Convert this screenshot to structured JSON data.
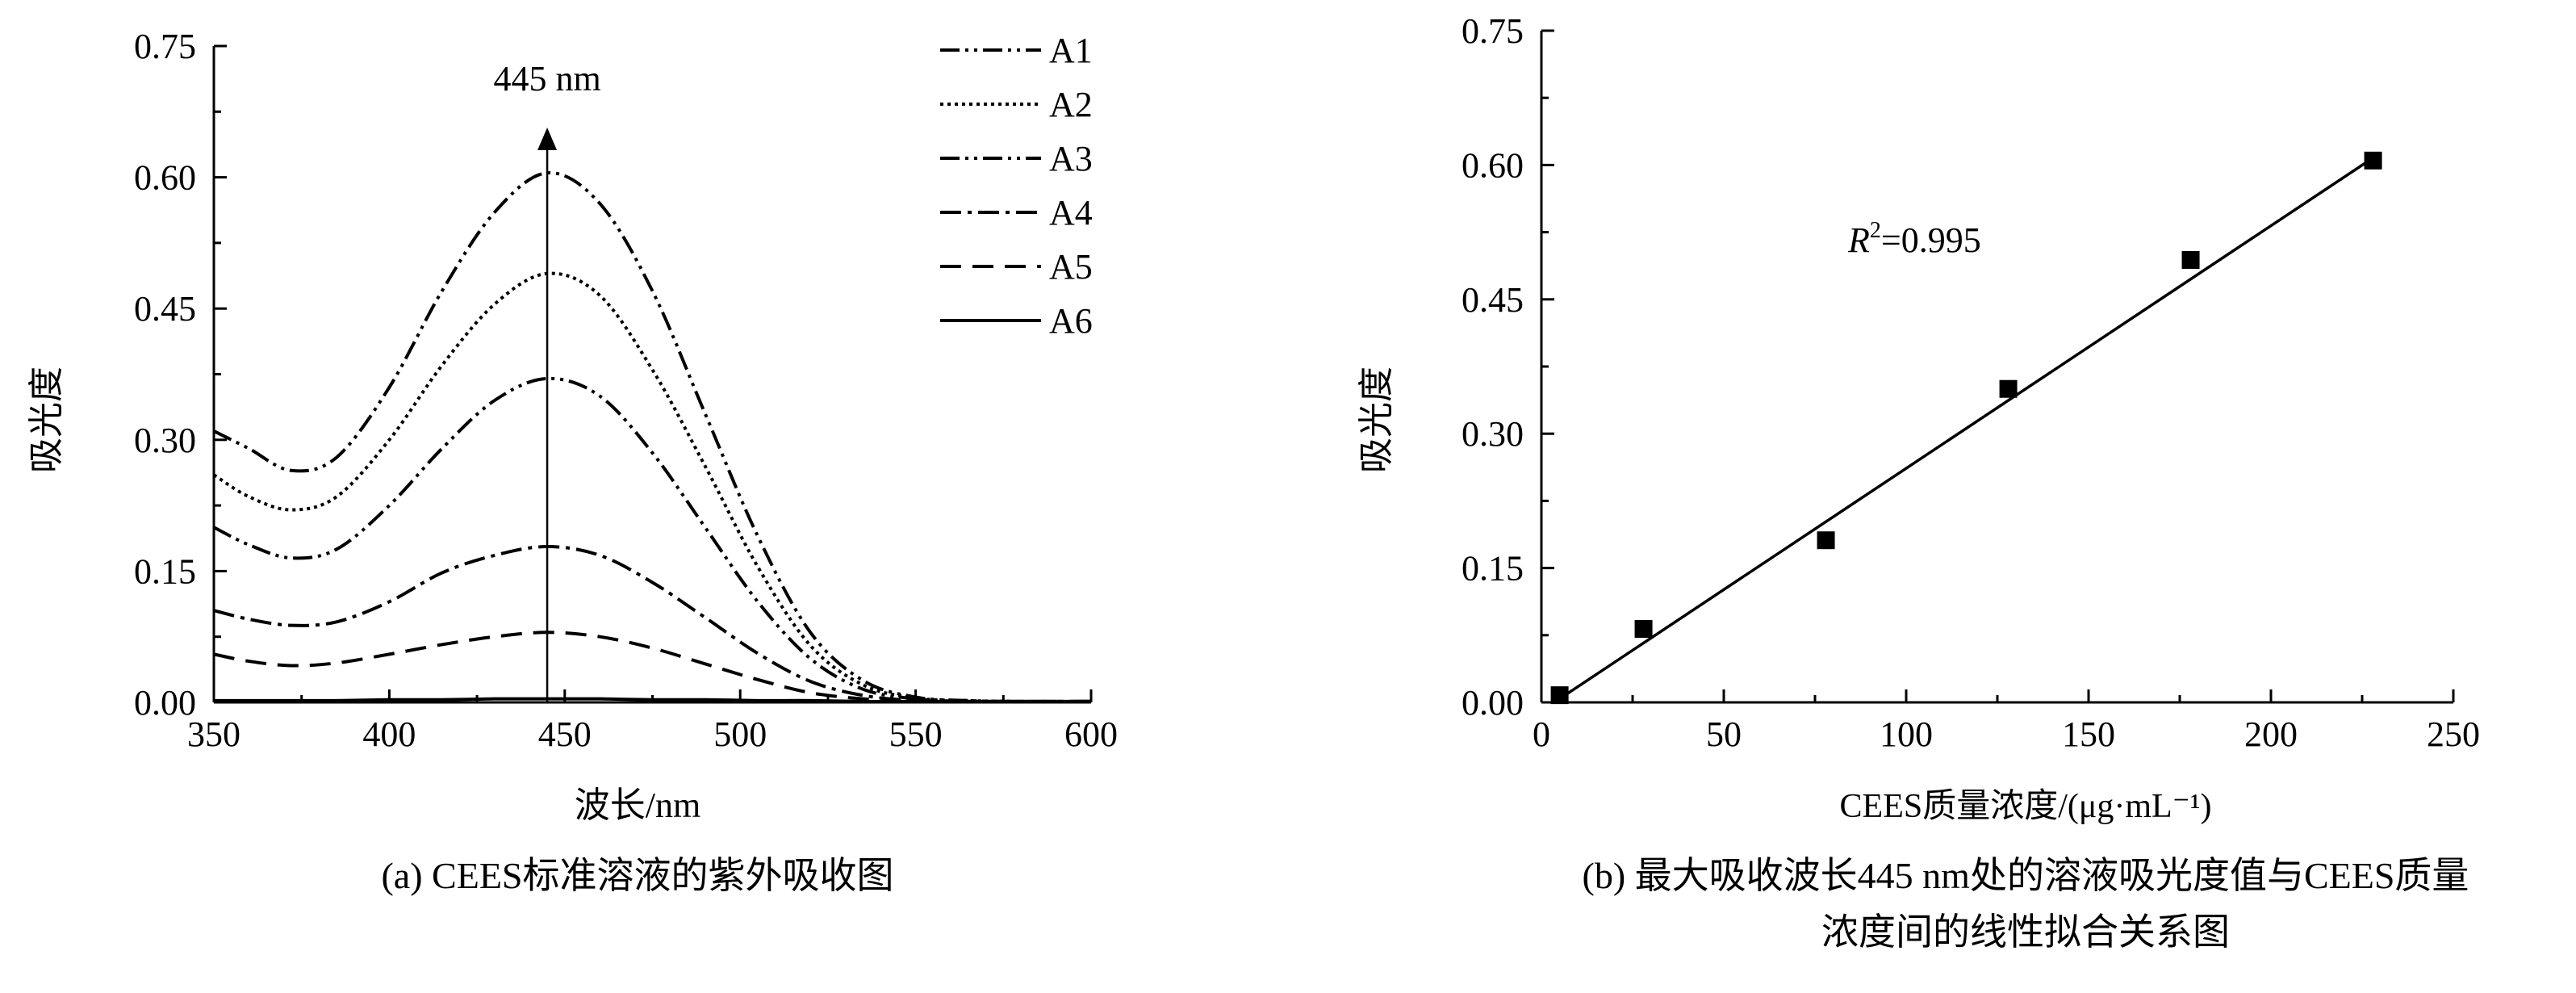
{
  "chart_data": [
    {
      "type": "line",
      "ylabel": "吸光度",
      "xlabel": "波长/nm",
      "caption": "(a) CEES标准溶液的紫外吸收图",
      "xlim": [
        350,
        600
      ],
      "ylim": [
        0,
        0.75
      ],
      "xticks": [
        "350",
        "400",
        "450",
        "500",
        "550",
        "600"
      ],
      "yticks": [
        "0.00",
        "0.15",
        "0.30",
        "0.45",
        "0.60",
        "0.75"
      ],
      "annotation": "445 nm",
      "annotation_x": 445,
      "legend_position": "top-right",
      "grid": false,
      "x": [
        350,
        360,
        372,
        385,
        400,
        415,
        430,
        445,
        460,
        475,
        490,
        505,
        520,
        535,
        550,
        565,
        580,
        600
      ],
      "series": [
        {
          "name": "A1",
          "dash": "dash-dot-dot",
          "values": [
            0.31,
            0.29,
            0.265,
            0.28,
            0.36,
            0.47,
            0.56,
            0.605,
            0.57,
            0.47,
            0.33,
            0.19,
            0.08,
            0.025,
            0.006,
            0.002,
            0.001,
            0.001
          ]
        },
        {
          "name": "A2",
          "dash": "dotted",
          "values": [
            0.26,
            0.235,
            0.22,
            0.235,
            0.3,
            0.385,
            0.455,
            0.49,
            0.465,
            0.38,
            0.27,
            0.155,
            0.065,
            0.02,
            0.005,
            0.002,
            0.001,
            0.001
          ]
        },
        {
          "name": "A3",
          "dash": "dash-dot-dot",
          "values": [
            0.2,
            0.18,
            0.165,
            0.175,
            0.225,
            0.29,
            0.345,
            0.37,
            0.35,
            0.285,
            0.2,
            0.115,
            0.05,
            0.015,
            0.004,
            0.001,
            0.001,
            0.001
          ]
        },
        {
          "name": "A4",
          "dash": "dash-dot",
          "values": [
            0.105,
            0.095,
            0.088,
            0.092,
            0.115,
            0.148,
            0.168,
            0.178,
            0.168,
            0.137,
            0.097,
            0.056,
            0.024,
            0.008,
            0.002,
            0.001,
            0.001,
            0.001
          ]
        },
        {
          "name": "A5",
          "dash": "dashed",
          "values": [
            0.055,
            0.047,
            0.042,
            0.045,
            0.055,
            0.066,
            0.075,
            0.08,
            0.075,
            0.062,
            0.044,
            0.026,
            0.011,
            0.004,
            0.001,
            0.001,
            0.001,
            0.001
          ]
        },
        {
          "name": "A6",
          "dash": "solid",
          "values": [
            0.002,
            0.002,
            0.002,
            0.002,
            0.003,
            0.003,
            0.004,
            0.004,
            0.004,
            0.003,
            0.003,
            0.002,
            0.002,
            0.001,
            0.001,
            0.001,
            0.001,
            0.001
          ]
        }
      ]
    },
    {
      "type": "scatter",
      "ylabel": "吸光度",
      "xlabel": "CEES质量浓度/(μg·mL⁻¹)",
      "caption_line1": "(b) 最大吸收波长445 nm处的溶液吸光度值与CEES质量",
      "caption_line2": "浓度间的线性拟合关系图",
      "xlim": [
        0,
        250
      ],
      "ylim": [
        0,
        0.75
      ],
      "xticks": [
        "0",
        "50",
        "100",
        "150",
        "200",
        "250"
      ],
      "yticks": [
        "0.00",
        "0.15",
        "0.30",
        "0.45",
        "0.60",
        "0.75"
      ],
      "annotation_r": "R",
      "annotation_sup": "2",
      "annotation_value": "=0.995",
      "grid": false,
      "x": [
        5,
        28,
        78,
        128,
        178,
        228
      ],
      "y": [
        0.008,
        0.082,
        0.181,
        0.35,
        0.494,
        0.605
      ],
      "fit_line": {
        "x": [
          5,
          228
        ],
        "y": [
          0.004,
          0.608
        ]
      }
    }
  ]
}
